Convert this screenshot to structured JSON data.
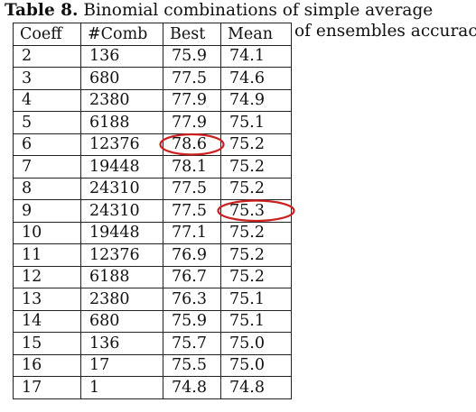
{
  "caption": {
    "label": "Table 8.",
    "text": "Binomial combinations of simple average",
    "text_cont": "of ensembles accuracy"
  },
  "table": {
    "headers": [
      "Coeff",
      "#Comb",
      "Best",
      "Mean"
    ],
    "rows": [
      [
        "2",
        "136",
        "75.9",
        "74.1"
      ],
      [
        "3",
        "680",
        "77.5",
        "74.6"
      ],
      [
        "4",
        "2380",
        "77.9",
        "74.9"
      ],
      [
        "5",
        "6188",
        "77.9",
        "75.1"
      ],
      [
        "6",
        "12376",
        "78.6",
        "75.2"
      ],
      [
        "7",
        "19448",
        "78.1",
        "75.2"
      ],
      [
        "8",
        "24310",
        "77.5",
        "75.2"
      ],
      [
        "9",
        "24310",
        "77.5",
        "75.3"
      ],
      [
        "10",
        "19448",
        "77.1",
        "75.2"
      ],
      [
        "11",
        "12376",
        "76.9",
        "75.2"
      ],
      [
        "12",
        "6188",
        "76.7",
        "75.2"
      ],
      [
        "13",
        "2380",
        "76.3",
        "75.1"
      ],
      [
        "14",
        "680",
        "75.9",
        "75.1"
      ],
      [
        "15",
        "136",
        "75.7",
        "75.0"
      ],
      [
        "16",
        "17",
        "75.5",
        "75.0"
      ],
      [
        "17",
        "1",
        "74.8",
        "74.8"
      ]
    ],
    "highlight_color": "#cc1f1f"
  }
}
